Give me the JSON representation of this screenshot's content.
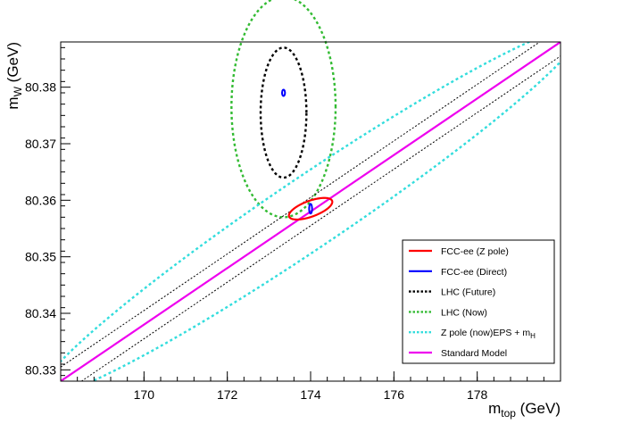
{
  "chart_data": {
    "type": "contour",
    "xlabel": {
      "main": "m",
      "sub": "top",
      "rest": " (GeV)"
    },
    "ylabel": {
      "main": "m",
      "sub": "W",
      "rest": " (GeV)"
    },
    "xlim": [
      168,
      180
    ],
    "ylim": [
      80.328,
      80.388
    ],
    "x_ticks": [
      170,
      172,
      174,
      176,
      178
    ],
    "y_ticks": [
      80.33,
      80.34,
      80.35,
      80.36,
      80.37,
      80.38
    ],
    "x_tick_labels": [
      "170",
      "172",
      "174",
      "176",
      "178"
    ],
    "y_tick_labels": [
      "80.33",
      "80.34",
      "80.35",
      "80.36",
      "80.37",
      "80.38"
    ],
    "grid": false,
    "legend_position": "bottom-right",
    "series": [
      {
        "name": "FCC-ee (Z pole)",
        "kind": "ellipse",
        "color": "#ff0000",
        "dash": "solid",
        "center": [
          174.0,
          80.3585
        ],
        "rx": 0.55,
        "ry": 0.0014,
        "angle_deg": 20
      },
      {
        "name": "FCC-ee (Direct)",
        "kind": "ellipses",
        "color": "#0000ff",
        "dash": "solid",
        "items": [
          {
            "center": [
              173.35,
              80.379
            ],
            "rx": 0.035,
            "ry": 0.00055,
            "angle_deg": 0
          },
          {
            "center": [
              174.0,
              80.3585
            ],
            "rx": 0.035,
            "ry": 0.00085,
            "angle_deg": 0
          }
        ]
      },
      {
        "name": "LHC (Future)",
        "kind": "ellipse",
        "color": "#000000",
        "dash": "dotted",
        "center": [
          173.35,
          80.3755
        ],
        "rx": 0.55,
        "ry": 0.0115,
        "angle_deg": 0
      },
      {
        "name": "LHC (Now)",
        "kind": "ellipse",
        "color": "#33bb33",
        "dash": "dotted",
        "center": [
          173.35,
          80.3765
        ],
        "rx": 1.25,
        "ry": 0.0195,
        "angle_deg": 0
      },
      {
        "name": "Z pole (now)EPS + m",
        "name_sub": "H",
        "kind": "ellipse",
        "color": "#33dddd",
        "dash": "dotted",
        "center": [
          174.0,
          80.358
        ],
        "rx": 7.8,
        "ry": 0.0062,
        "angle_deg": 34
      },
      {
        "name": "Standard Model",
        "kind": "band",
        "color": "#ee00ee",
        "dash": "solid",
        "line": [
          [
            168,
            80.328
          ],
          [
            180,
            80.388
          ]
        ],
        "edges": [
          {
            "points": [
              [
                168,
                80.3305
              ],
              [
                180,
                80.3905
              ]
            ],
            "color": "#000000",
            "dash": "dotted"
          },
          {
            "points": [
              [
                168,
                80.3255
              ],
              [
                180,
                80.3855
              ]
            ],
            "color": "#000000",
            "dash": "dotted"
          }
        ]
      }
    ]
  }
}
